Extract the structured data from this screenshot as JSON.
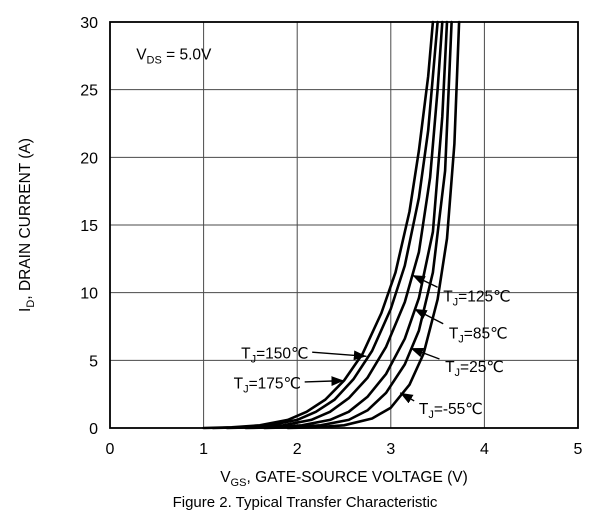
{
  "caption": "Figure 2. Typical Transfer Characteristic",
  "chart_data": {
    "type": "line",
    "title": "",
    "xlabel": {
      "pre": "V",
      "sub": "GS",
      "post": ", GATE-SOURCE VOLTAGE (V)"
    },
    "ylabel": {
      "pre": "I",
      "sub": "D",
      "post": ", DRAIN CURRENT (A)"
    },
    "xlim": [
      0,
      5
    ],
    "ylim": [
      0,
      30
    ],
    "xticks": [
      0,
      1,
      2,
      3,
      4,
      5
    ],
    "yticks": [
      0,
      5,
      10,
      15,
      20,
      25,
      30
    ],
    "grid": true,
    "legend_position": "none",
    "inset_label": {
      "pre": "V",
      "sub": "DS",
      "post": " = 5.0V",
      "x": 0.28,
      "y": 27.6
    },
    "series": [
      {
        "label": "TJ=175℃",
        "temp_c": 175,
        "x": [
          1.0,
          1.3,
          1.6,
          1.9,
          2.1,
          2.3,
          2.5,
          2.7,
          2.9,
          3.05,
          3.2,
          3.3,
          3.4,
          3.45
        ],
        "y": [
          0,
          0.05,
          0.2,
          0.6,
          1.2,
          2.1,
          3.5,
          5.5,
          8.5,
          11.5,
          16,
          20.5,
          26,
          30
        ]
      },
      {
        "label": "TJ=150℃",
        "temp_c": 150,
        "x": [
          1.1,
          1.4,
          1.7,
          2.0,
          2.2,
          2.4,
          2.6,
          2.8,
          3.0,
          3.15,
          3.3,
          3.4,
          3.5
        ],
        "y": [
          0,
          0.05,
          0.2,
          0.6,
          1.2,
          2.1,
          3.6,
          5.7,
          8.8,
          12,
          17,
          22,
          30
        ]
      },
      {
        "label": "TJ=125℃",
        "temp_c": 125,
        "x": [
          1.25,
          1.55,
          1.85,
          2.15,
          2.35,
          2.55,
          2.75,
          2.95,
          3.15,
          3.3,
          3.42,
          3.5,
          3.55
        ],
        "y": [
          0,
          0.05,
          0.2,
          0.6,
          1.2,
          2.2,
          3.7,
          6.0,
          9.3,
          13,
          18.5,
          25,
          30
        ]
      },
      {
        "label": "TJ=85℃",
        "temp_c": 85,
        "x": [
          1.45,
          1.75,
          2.05,
          2.35,
          2.55,
          2.75,
          2.95,
          3.15,
          3.3,
          3.45,
          3.55,
          3.6
        ],
        "y": [
          0,
          0.05,
          0.2,
          0.6,
          1.2,
          2.3,
          4.0,
          6.6,
          9.6,
          14.5,
          23,
          30
        ]
      },
      {
        "label": "TJ=25℃",
        "temp_c": 25,
        "x": [
          1.65,
          1.95,
          2.25,
          2.55,
          2.75,
          2.95,
          3.15,
          3.3,
          3.45,
          3.58,
          3.65
        ],
        "y": [
          0,
          0.05,
          0.2,
          0.6,
          1.3,
          2.6,
          4.7,
          7.2,
          11.5,
          19,
          30
        ]
      },
      {
        "label": "TJ=-55℃",
        "temp_c": -55,
        "x": [
          1.9,
          2.2,
          2.5,
          2.8,
          3.0,
          3.2,
          3.35,
          3.5,
          3.6,
          3.68,
          3.73
        ],
        "y": [
          0,
          0.05,
          0.2,
          0.7,
          1.5,
          3.2,
          5.5,
          9.5,
          14,
          21,
          30
        ]
      }
    ],
    "annotations": [
      {
        "pre": "T",
        "sub": "J",
        "post": "=125℃",
        "anchor": "start",
        "label_xy": [
          3.56,
          9.7
        ],
        "arrow_from": [
          3.5,
          10.4
        ],
        "arrow_to": [
          3.23,
          11.3
        ]
      },
      {
        "pre": "T",
        "sub": "J",
        "post": "=85℃",
        "anchor": "start",
        "label_xy": [
          3.62,
          7.0
        ],
        "arrow_from": [
          3.56,
          7.7
        ],
        "arrow_to": [
          3.25,
          8.8
        ]
      },
      {
        "pre": "T",
        "sub": "J",
        "post": "=25℃",
        "anchor": "start",
        "label_xy": [
          3.58,
          4.5
        ],
        "arrow_from": [
          3.52,
          5.1
        ],
        "arrow_to": [
          3.21,
          5.9
        ]
      },
      {
        "pre": "T",
        "sub": "J",
        "post": "=-55℃",
        "anchor": "start",
        "label_xy": [
          3.3,
          1.4
        ],
        "arrow_from": [
          3.25,
          2.0
        ],
        "arrow_to": [
          3.1,
          2.6
        ]
      },
      {
        "pre": "T",
        "sub": "J",
        "post": "=150℃",
        "anchor": "end",
        "label_xy": [
          2.12,
          5.5
        ],
        "arrow_from": [
          2.16,
          5.6
        ],
        "arrow_to": [
          2.74,
          5.3
        ]
      },
      {
        "pre": "T",
        "sub": "J",
        "post": "=175℃",
        "anchor": "end",
        "label_xy": [
          2.04,
          3.3
        ],
        "arrow_from": [
          2.08,
          3.4
        ],
        "arrow_to": [
          2.5,
          3.5
        ]
      }
    ]
  }
}
